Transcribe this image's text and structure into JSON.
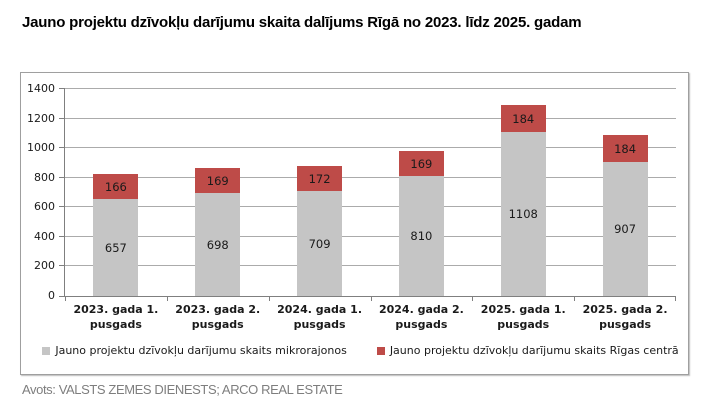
{
  "title": "Jauno projektu dzīvokļu darījumu skaita dalījums Rīgā no 2023. līdz 2025. gadam",
  "source": "Avots: VALSTS ZEMES DIENESTS; ARCO REAL ESTATE",
  "colors": {
    "series_mikrorajoni": "#c5c5c5",
    "series_centrs": "#be4b48",
    "gridline": "#ababab",
    "axis": "#7f7f7f",
    "source_text": "#7e7e7e"
  },
  "chart_data": {
    "type": "bar",
    "stacked": true,
    "title": "Jauno projektu dzīvokļu darījumu skaita dalījums Rīgā no 2023. līdz 2025. gadam",
    "categories": [
      "2023. gada 1. pusgads",
      "2023. gada 2. pusgads",
      "2024. gada 1. pusgads",
      "2024. gada 2. pusgads",
      "2025. gada 1. pusgads",
      "2025. gada 2. pusgads"
    ],
    "series": [
      {
        "name": "Jauno projektu dzīvokļu darījumu skaits mikrorajonos",
        "color": "#c5c5c5",
        "values": [
          657,
          698,
          709,
          810,
          1108,
          907
        ]
      },
      {
        "name": "Jauno projektu dzīvokļu darījumu skaits Rīgas centrā",
        "color": "#be4b48",
        "values": [
          166,
          169,
          172,
          169,
          184,
          184
        ]
      }
    ],
    "totals": [
      823,
      867,
      881,
      979,
      1292,
      1091
    ],
    "xlabel": "",
    "ylabel": "",
    "ylim": [
      0,
      1400
    ],
    "yticks": [
      0,
      200,
      400,
      600,
      800,
      1000,
      1200,
      1400
    ],
    "grid": true,
    "data_labels": true,
    "legend_position": "bottom"
  }
}
